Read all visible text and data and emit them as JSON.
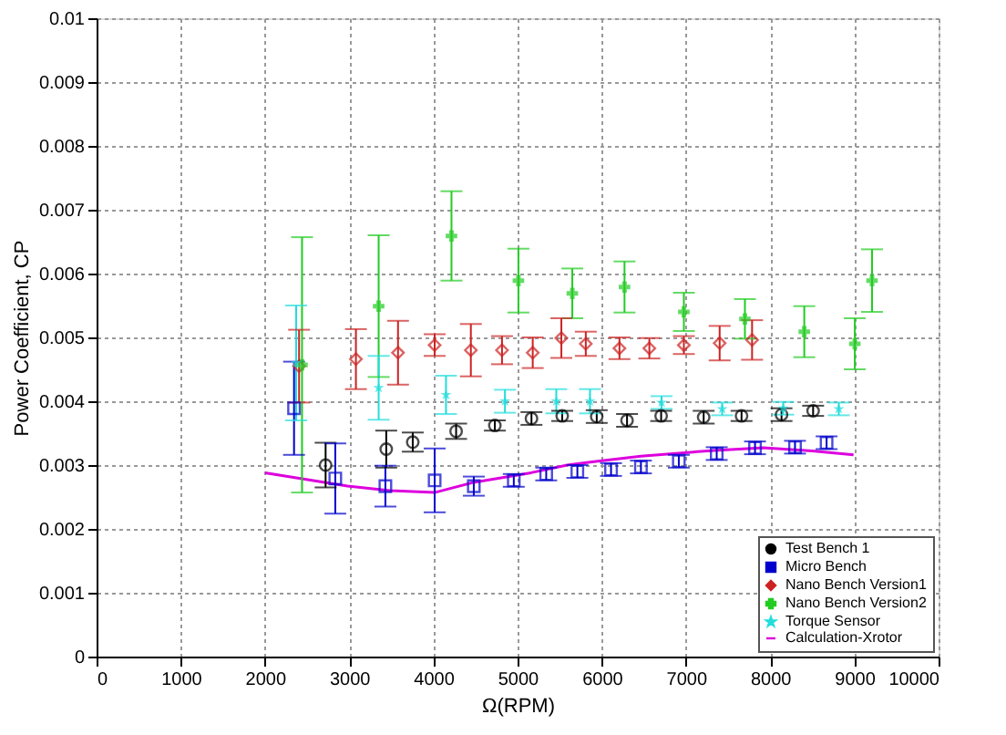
{
  "chart_data": {
    "type": "scatter",
    "xlabel": "Ω(RPM)",
    "ylabel": "Power Coefficient, CP",
    "xlim": [
      0,
      10000
    ],
    "xticks": [
      0,
      1000,
      2000,
      3000,
      4000,
      5000,
      6000,
      7000,
      8000,
      9000,
      10000
    ],
    "ylim": [
      0,
      0.01
    ],
    "yticks": [
      0,
      0.001,
      0.002,
      0.003,
      0.004,
      0.005,
      0.006,
      0.007,
      0.008,
      0.009,
      0.01
    ],
    "grid": true,
    "legend": "bottom right",
    "series": [
      {
        "name": "Test Bench 1",
        "color": "#000000",
        "marker": "circle",
        "x": [
          2720,
          3440,
          3755,
          4270,
          4730,
          5165,
          5530,
          5940,
          6300,
          6705,
          7210,
          7660,
          8135,
          8510
        ],
        "values": [
          0.003,
          0.00325,
          0.00336,
          0.00353,
          0.00362,
          0.00373,
          0.00377,
          0.00376,
          0.0037,
          0.00377,
          0.00375,
          0.00377,
          0.00379,
          0.00385
        ],
        "errors": [
          0.00035,
          0.00029,
          0.00015,
          0.00012,
          8e-05,
          0.0001,
          8e-05,
          0.0001,
          0.0001,
          8e-05,
          0.0001,
          8e-05,
          0.0001,
          8e-05
        ]
      },
      {
        "name": "Micro Bench",
        "color": "#0000cc",
        "marker": "square",
        "x": [
          2345,
          2835,
          3430,
          4015,
          4480,
          4955,
          5340,
          5710,
          6110,
          6465,
          6915,
          7365,
          7820,
          8295,
          8670
        ],
        "values": [
          0.00389,
          0.00279,
          0.00267,
          0.00276,
          0.00267,
          0.00276,
          0.00286,
          0.0029,
          0.00293,
          0.00297,
          0.00306,
          0.00318,
          0.00327,
          0.00328,
          0.00335
        ],
        "errors": [
          0.00073,
          0.00055,
          0.00032,
          0.0005,
          0.00015,
          0.0001,
          0.0001,
          0.0001,
          0.0001,
          0.0001,
          0.0001,
          0.0001,
          0.0001,
          0.0001,
          0.0001
        ]
      },
      {
        "name": "Nano Bench Version1",
        "color": "#cc2222",
        "marker": "diamond",
        "x": [
          2405,
          3080,
          3580,
          4015,
          4445,
          4815,
          5180,
          5520,
          5810,
          6210,
          6565,
          6975,
          7400,
          7785
        ],
        "values": [
          0.00455,
          0.00466,
          0.00476,
          0.00488,
          0.0048,
          0.0048,
          0.00476,
          0.00499,
          0.0049,
          0.00483,
          0.00483,
          0.00488,
          0.00491,
          0.00496
        ],
        "errors": [
          0.00057,
          0.00047,
          0.0005,
          0.00017,
          0.00041,
          0.00022,
          0.00024,
          0.00031,
          0.00019,
          0.00017,
          0.00016,
          0.00014,
          0.00027,
          0.00031
        ]
      },
      {
        "name": "Nano Bench Version2",
        "color": "#22cc22",
        "marker": "cross",
        "x": [
          2440,
          3350,
          4215,
          5010,
          5650,
          6270,
          6975,
          7700,
          8405,
          9005,
          9210
        ],
        "values": [
          0.00457,
          0.00549,
          0.00659,
          0.00589,
          0.00569,
          0.00579,
          0.0054,
          0.00529,
          0.00509,
          0.0049,
          0.00589
        ],
        "errors": [
          0.002,
          0.00111,
          0.0007,
          0.0005,
          0.00039,
          0.0004,
          0.0003,
          0.00031,
          0.0004,
          0.0004,
          0.00049
        ]
      },
      {
        "name": "Torque Sensor",
        "color": "#22dddd",
        "marker": "star",
        "x": [
          2370,
          3350,
          4150,
          4850,
          5460,
          5860,
          6710,
          7430,
          8155,
          8815
        ],
        "values": [
          0.0046,
          0.00421,
          0.0041,
          0.004,
          0.004,
          0.004,
          0.00398,
          0.00388,
          0.00389,
          0.00388
        ],
        "errors": [
          0.0009,
          0.0005,
          0.0003,
          0.00018,
          0.00019,
          0.00019,
          0.0001,
          0.0001,
          0.0001,
          0.0001
        ]
      },
      {
        "name": "Calculation-Xrotor",
        "color": "#dd00dd",
        "type": "line",
        "marker": "none",
        "line_style": "solid",
        "x": [
          2000,
          2980,
          3485,
          4015,
          4480,
          5160,
          5590,
          5885,
          6465,
          7335,
          7920,
          8500,
          8990
        ],
        "values": [
          0.00288,
          0.00267,
          0.0026,
          0.00257,
          0.00273,
          0.00288,
          0.003,
          0.00305,
          0.00314,
          0.00323,
          0.00327,
          0.00322,
          0.00316
        ]
      }
    ]
  }
}
